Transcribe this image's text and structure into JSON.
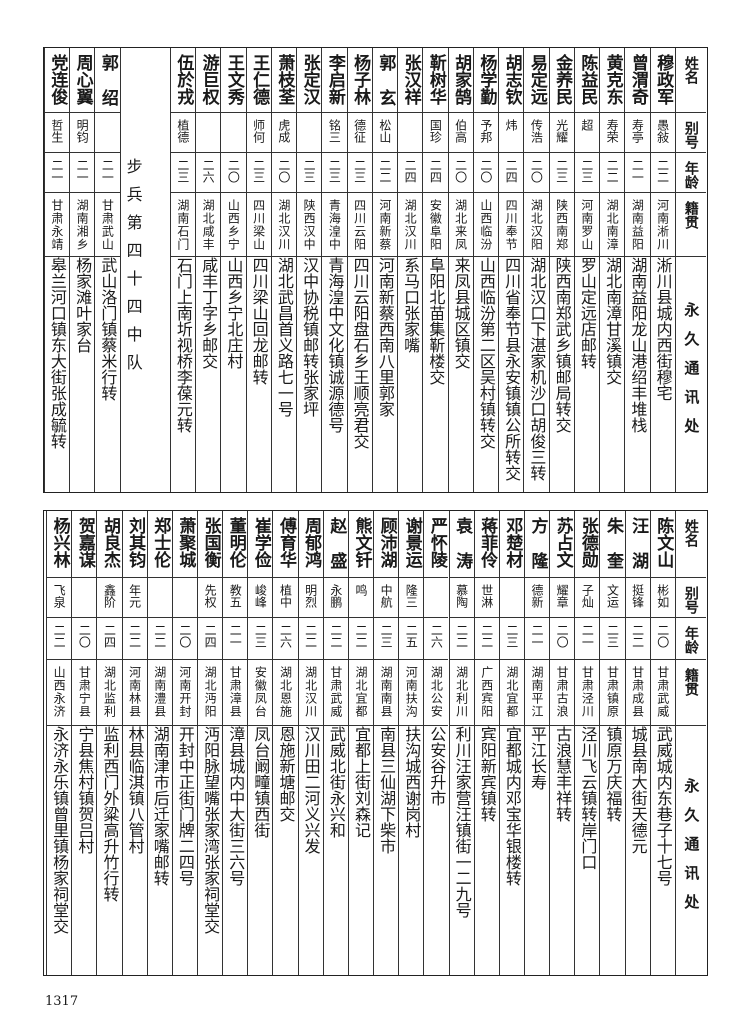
{
  "header": {
    "name": "姓名",
    "alias": "别号",
    "age": "年龄",
    "origin": "籍贯",
    "address": "永久通讯处"
  },
  "section_label": "步兵第四十四中队",
  "top_table": [
    {
      "name": "穆政军",
      "alias": "愚敍",
      "age": "二二",
      "origin": "河南淅川",
      "address": "淅川县城内西街穆宅"
    },
    {
      "name": "曾渭奇",
      "alias": "寿亭",
      "age": "二一",
      "origin": "湖南益阳",
      "address": "湖南益阳龙山港绍丰堆栈"
    },
    {
      "name": "黄克东",
      "alias": "寿荣",
      "age": "二二",
      "origin": "湖北南漳",
      "address": "湖北南漳甘溪镇交"
    },
    {
      "name": "陈益民",
      "alias": "超",
      "age": "二三",
      "origin": "河南罗山",
      "address": "罗山定远店邮转"
    },
    {
      "name": "金养民",
      "alias": "光耀",
      "age": "二三",
      "origin": "陕西南郑",
      "address": "陕西南郑武乡镇邮局转交"
    },
    {
      "name": "易定远",
      "alias": "传浩",
      "age": "二〇",
      "origin": "湖北汉阳",
      "address": "湖北汉口下湛家机沙口胡俊三转"
    },
    {
      "name": "胡志钦",
      "alias": "炜",
      "age": "二四",
      "origin": "四川奉节",
      "address": "四川省奉节县永安镇镇公所转交"
    },
    {
      "name": "杨学勤",
      "alias": "予邦",
      "age": "二〇",
      "origin": "山西临汾",
      "address": "山西临汾第二区吴村镇转交"
    },
    {
      "name": "胡家鹄",
      "alias": "伯高",
      "age": "二〇",
      "origin": "湖北来凤",
      "address": "来凤县城区镇交"
    },
    {
      "name": "靳树华",
      "alias": "国珍",
      "age": "二四",
      "origin": "安徽阜阳",
      "address": "阜阳北苗集靳楼交"
    },
    {
      "name": "张汉祥",
      "alias": "",
      "age": "二四",
      "origin": "湖北汉川",
      "address": "系马口张家嘴"
    },
    {
      "name": "郭玄",
      "alias": "松山",
      "age": "二二",
      "origin": "河南新蔡",
      "address": "河南新蔡西南八里郭家"
    },
    {
      "name": "杨子林",
      "alias": "德征",
      "age": "二三",
      "origin": "四川云阳",
      "address": "四川云阳盘石乡王顺亮君交"
    },
    {
      "name": "李启新",
      "alias": "铭三",
      "age": "二三",
      "origin": "青海湟中",
      "address": "青海湟中文化镇诚源德号"
    },
    {
      "name": "张定汉",
      "alias": "",
      "age": "二三",
      "origin": "陕西汉中",
      "address": "汉中协税镇邮转张家坪"
    },
    {
      "name": "萧枝荃",
      "alias": "虎成",
      "age": "二〇",
      "origin": "湖北汉川",
      "address": "湖北武昌首义路七一号"
    },
    {
      "name": "王仁德",
      "alias": "师何",
      "age": "二三",
      "origin": "四川梁山",
      "address": "四川梁山回龙邮转"
    },
    {
      "name": "王文秀",
      "alias": "",
      "age": "二〇",
      "origin": "山西乡宁",
      "address": "山西乡宁北庄村"
    },
    {
      "name": "游巨权",
      "alias": "",
      "age": "二六",
      "origin": "湖北咸丰",
      "address": "咸丰丁字乡邮交"
    },
    {
      "name": "伍於戎",
      "alias": "植德",
      "age": "二三",
      "origin": "湖南石门",
      "address": "石门上南圻视桥李葆元转"
    }
  ],
  "top_table_section": [
    {
      "name": "郭绍",
      "alias": "",
      "age": "二一",
      "origin": "甘肃武山",
      "address": "武山洛门镇蔡米行转"
    },
    {
      "name": "周心翼",
      "alias": "明钧",
      "age": "二一",
      "origin": "湖南湘乡",
      "address": "杨家滩叶家台"
    },
    {
      "name": "党连俊",
      "alias": "哲生",
      "age": "二一",
      "origin": "甘肃永靖",
      "address": "皋兰河口镇东大街张成毓转"
    }
  ],
  "bottom_table": [
    {
      "name": "陈文山",
      "alias": "彬如",
      "age": "二〇",
      "origin": "甘肃武威",
      "address": "武威城内东巷子十七号"
    },
    {
      "name": "汪湖",
      "alias": "挺锋",
      "age": "二二",
      "origin": "甘肃成县",
      "address": "城县南大街天德元"
    },
    {
      "name": "朱奎",
      "alias": "文运",
      "age": "二三",
      "origin": "甘肃镇原",
      "address": "镇原万庆福转"
    },
    {
      "name": "张德勋",
      "alias": "子灿",
      "age": "二一",
      "origin": "甘肃泾川",
      "address": "泾川飞云镇转岸门口"
    },
    {
      "name": "苏占文",
      "alias": "耀章",
      "age": "二〇",
      "origin": "甘肃古浪",
      "address": "古浪慧丰祥转"
    },
    {
      "name": "方隆",
      "alias": "德新",
      "age": "二一",
      "origin": "湖南平江",
      "address": "平江长寿"
    },
    {
      "name": "邓楚材",
      "alias": "",
      "age": "二三",
      "origin": "湖北宜都",
      "address": "宜都城内邓宝华银楼转"
    },
    {
      "name": "蒋菲伶",
      "alias": "世淋",
      "age": "二二",
      "origin": "广西宾阳",
      "address": "宾阳新宾镇转"
    },
    {
      "name": "袁涛",
      "alias": "慕陶",
      "age": "二二",
      "origin": "湖北利川",
      "address": "利川汪家营汪镇街一二九号"
    },
    {
      "name": "严怀陵",
      "alias": "",
      "age": "二六",
      "origin": "湖北公安",
      "address": "公安谷升市"
    },
    {
      "name": "谢景运",
      "alias": "隆三",
      "age": "二五",
      "origin": "河南扶沟",
      "address": "扶沟城西谢岗村"
    },
    {
      "name": "顾沛湖",
      "alias": "中航",
      "age": "二三",
      "origin": "湖南南县",
      "address": "南县三仙湖下柴市"
    },
    {
      "name": "熊文钎",
      "alias": "鸣",
      "age": "二二",
      "origin": "湖北宜都",
      "address": "宜都上街刘森记"
    },
    {
      "name": "赵盛",
      "alias": "永鹏",
      "age": "二二",
      "origin": "甘肃武威",
      "address": "武威北街永兴和"
    },
    {
      "name": "周郁鸿",
      "alias": "明烈",
      "age": "二二",
      "origin": "湖北汉川",
      "address": "汉川田二河义兴发"
    },
    {
      "name": "傅育华",
      "alias": "植中",
      "age": "二六",
      "origin": "湖北恩施",
      "address": "恩施新塘邮交"
    },
    {
      "name": "崔学俭",
      "alias": "峻峰",
      "age": "二三",
      "origin": "安徽凤台",
      "address": "凤台阚疃镇西街"
    },
    {
      "name": "董明伦",
      "alias": "教五",
      "age": "二一",
      "origin": "甘肃漳县",
      "address": "漳县城内中大街三六号"
    },
    {
      "name": "张国衡",
      "alias": "先权",
      "age": "二四",
      "origin": "湖北沔阳",
      "address": "沔阳脉望嘴张家湾张家祠堂交"
    },
    {
      "name": "萧聚城",
      "alias": "",
      "age": "二〇",
      "origin": "河南开封",
      "address": "开封中正街门牌二四号"
    },
    {
      "name": "郑士伦",
      "alias": "",
      "age": "二二",
      "origin": "湖南澧县",
      "address": "湖南津市后迁家嘴邮转"
    },
    {
      "name": "刘其钧",
      "alias": "年元",
      "age": "二二",
      "origin": "河南林县",
      "address": "林县临淇镇八管村"
    },
    {
      "name": "胡良杰",
      "alias": "鑫阶",
      "age": "二四",
      "origin": "湖北监利",
      "address": "监利西门外粱高升竹行转"
    },
    {
      "name": "贺嘉谋",
      "alias": "",
      "age": "二〇",
      "origin": "甘肃宁县",
      "address": "宁县焦村镇贺吕村"
    },
    {
      "name": "杨兴林",
      "alias": "飞泉",
      "age": "二二",
      "origin": "山西永济",
      "address": "永济永乐镇曾里镇杨家祠堂交"
    }
  ],
  "page_number": "1317"
}
